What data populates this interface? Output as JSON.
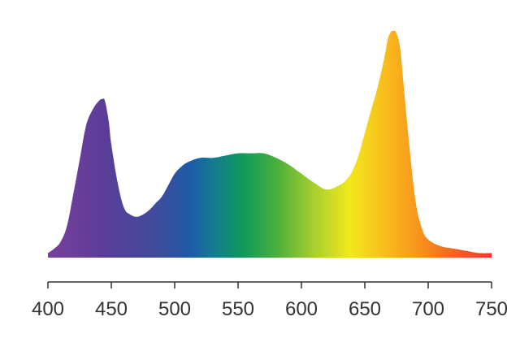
{
  "chart_data": {
    "type": "area",
    "title": "",
    "xlabel": "",
    "ylabel": "",
    "xlim": [
      400,
      750
    ],
    "ylim": [
      0,
      1
    ],
    "x_ticks": [
      400,
      450,
      500,
      550,
      600,
      650,
      700,
      750
    ],
    "x_tick_labels": [
      "400",
      "450",
      "500",
      "550",
      "600",
      "650",
      "700",
      "750"
    ],
    "grid": false,
    "legend": "none",
    "fill": "spectral gradient (violet to red)",
    "series": [
      {
        "x": [
          400,
          405,
          410,
          415,
          420,
          425,
          430,
          435,
          440,
          443,
          445,
          448,
          450,
          455,
          460,
          465,
          470,
          475,
          480,
          485,
          490,
          495,
          500,
          505,
          510,
          520,
          530,
          540,
          550,
          560,
          570,
          580,
          590,
          600,
          610,
          620,
          630,
          635,
          640,
          645,
          650,
          655,
          660,
          665,
          668,
          670,
          672,
          675,
          678,
          680,
          685,
          690,
          695,
          700,
          710,
          720,
          730,
          740,
          750
        ],
        "y": [
          0.02,
          0.04,
          0.07,
          0.14,
          0.28,
          0.43,
          0.58,
          0.65,
          0.69,
          0.7,
          0.69,
          0.6,
          0.5,
          0.33,
          0.22,
          0.19,
          0.18,
          0.19,
          0.21,
          0.24,
          0.27,
          0.32,
          0.37,
          0.4,
          0.42,
          0.44,
          0.44,
          0.45,
          0.46,
          0.46,
          0.46,
          0.44,
          0.41,
          0.37,
          0.33,
          0.3,
          0.32,
          0.34,
          0.38,
          0.45,
          0.55,
          0.65,
          0.75,
          0.87,
          0.96,
          0.99,
          1.0,
          0.99,
          0.92,
          0.8,
          0.5,
          0.25,
          0.13,
          0.08,
          0.05,
          0.04,
          0.03,
          0.02,
          0.02
        ]
      }
    ]
  }
}
